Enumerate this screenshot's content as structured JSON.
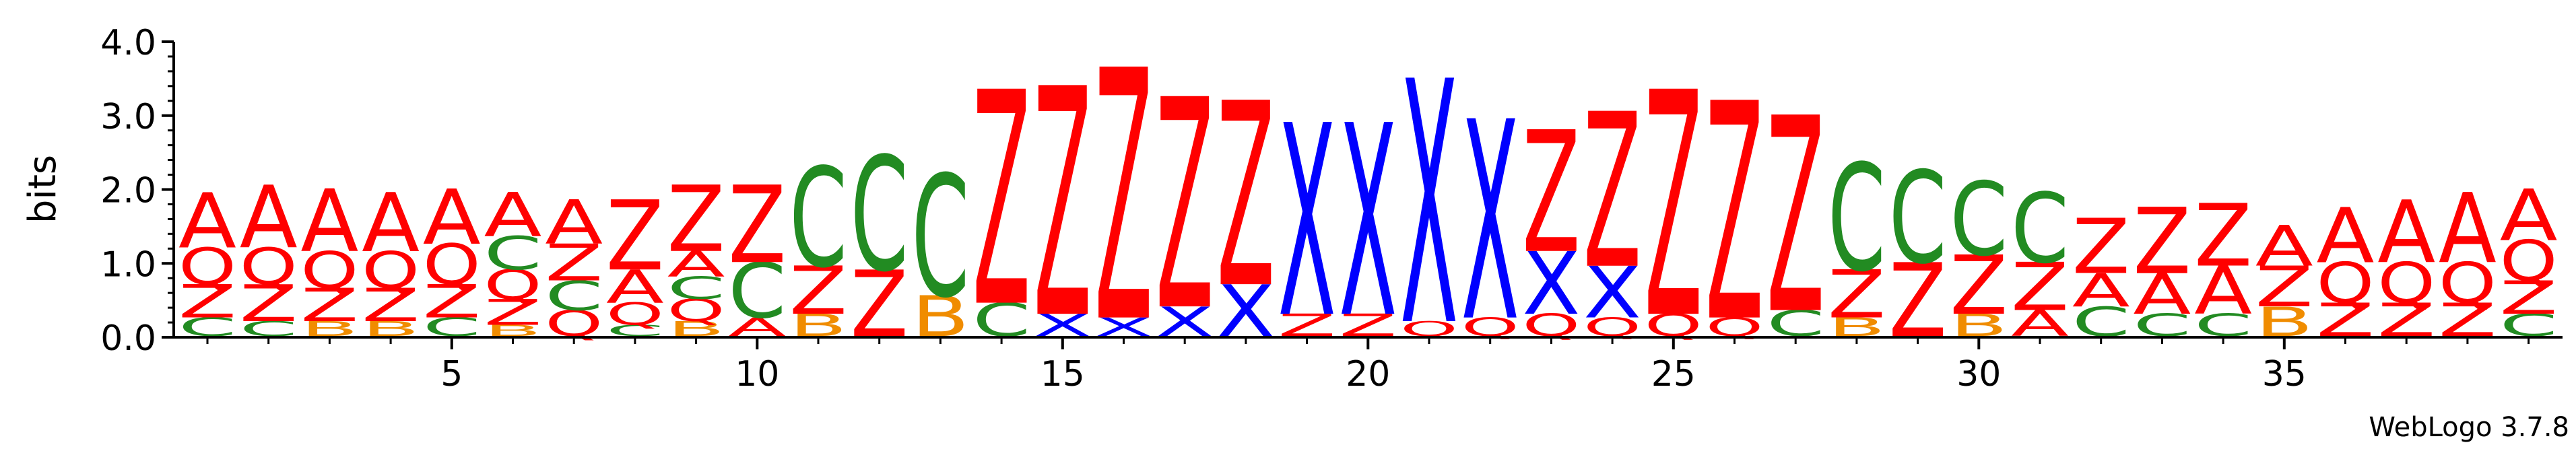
{
  "chart_data": {
    "type": "sequence-logo",
    "ylabel": "bits",
    "ylim": [
      0,
      4.0
    ],
    "y_ticks": [
      "0.0",
      "1.0",
      "2.0",
      "3.0",
      "4.0"
    ],
    "x_ticks": [
      5,
      10,
      15,
      20,
      25,
      30,
      35
    ],
    "positions": 39,
    "footer": "WebLogo 3.7.8",
    "letter_colors": {
      "A": "#ff0000",
      "Q": "#ff0000",
      "Z": "#ff0000",
      "C": "#228b22",
      "B": "#f08c00",
      "X": "#0000ff"
    },
    "columns": [
      [
        [
          "C",
          0.25
        ],
        [
          "Z",
          0.45
        ],
        [
          "Q",
          0.5
        ],
        [
          "A",
          0.75
        ]
      ],
      [
        [
          "C",
          0.2
        ],
        [
          "Z",
          0.5
        ],
        [
          "Q",
          0.5
        ],
        [
          "A",
          0.85
        ]
      ],
      [
        [
          "B",
          0.2
        ],
        [
          "Z",
          0.45
        ],
        [
          "Q",
          0.5
        ],
        [
          "A",
          0.85
        ]
      ],
      [
        [
          "B",
          0.2
        ],
        [
          "Z",
          0.45
        ],
        [
          "Q",
          0.5
        ],
        [
          "A",
          0.8
        ]
      ],
      [
        [
          "C",
          0.25
        ],
        [
          "Z",
          0.45
        ],
        [
          "Q",
          0.55
        ],
        [
          "A",
          0.75
        ]
      ],
      [
        [
          "B",
          0.15
        ],
        [
          "Z",
          0.35
        ],
        [
          "Q",
          0.4
        ],
        [
          "C",
          0.45
        ],
        [
          "A",
          0.6
        ]
      ],
      [
        [
          "Q",
          0.35
        ],
        [
          "C",
          0.4
        ],
        [
          "Z",
          0.5
        ],
        [
          "A",
          0.6
        ]
      ],
      [
        [
          "C",
          0.15
        ],
        [
          "Q",
          0.3
        ],
        [
          "A",
          0.45
        ],
        [
          "Z",
          0.95
        ]
      ],
      [
        [
          "B",
          0.2
        ],
        [
          "Q",
          0.3
        ],
        [
          "C",
          0.3
        ],
        [
          "A",
          0.35
        ],
        [
          "Z",
          0.9
        ]
      ],
      [
        [
          "A",
          0.25
        ],
        [
          "C",
          0.75
        ],
        [
          "Z",
          1.05
        ]
      ],
      [
        [
          "B",
          0.3
        ],
        [
          "Z",
          0.65
        ],
        [
          "C",
          1.35
        ]
      ],
      [
        [
          "Z",
          0.9
        ],
        [
          "C",
          1.55
        ]
      ],
      [
        [
          "B",
          0.55
        ],
        [
          "C",
          1.65
        ]
      ],
      [
        [
          "C",
          0.45
        ],
        [
          "Z",
          2.9
        ]
      ],
      [
        [
          "X",
          0.3
        ],
        [
          "Z",
          3.1
        ]
      ],
      [
        [
          "X",
          0.25
        ],
        [
          "Z",
          3.4
        ]
      ],
      [
        [
          "X",
          0.4
        ],
        [
          "Z",
          2.85
        ]
      ],
      [
        [
          "X",
          0.7
        ],
        [
          "Z",
          2.5
        ]
      ],
      [
        [
          "Z",
          0.3
        ],
        [
          "X",
          2.6
        ]
      ],
      [
        [
          "Z",
          0.3
        ],
        [
          "X",
          2.6
        ]
      ],
      [
        [
          "Q",
          0.2
        ],
        [
          "X",
          3.3
        ]
      ],
      [
        [
          "Q",
          0.25
        ],
        [
          "X",
          2.7
        ]
      ],
      [
        [
          "Q",
          0.3
        ],
        [
          "X",
          0.85
        ],
        [
          "Z",
          1.65
        ]
      ],
      [
        [
          "Q",
          0.25
        ],
        [
          "X",
          0.7
        ],
        [
          "Z",
          2.1
        ]
      ],
      [
        [
          "Q",
          0.3
        ],
        [
          "Z",
          3.05
        ]
      ],
      [
        [
          "Q",
          0.25
        ],
        [
          "Z",
          2.95
        ]
      ],
      [
        [
          "C",
          0.35
        ],
        [
          "Z",
          2.65
        ]
      ],
      [
        [
          "B",
          0.25
        ],
        [
          "Z",
          0.65
        ],
        [
          "C",
          1.45
        ]
      ],
      [
        [
          "Z",
          1.0
        ],
        [
          "C",
          1.25
        ]
      ],
      [
        [
          "B",
          0.3
        ],
        [
          "Z",
          0.8
        ],
        [
          "C",
          1.0
        ]
      ],
      [
        [
          "A",
          0.35
        ],
        [
          "Z",
          0.65
        ],
        [
          "C",
          0.95
        ]
      ],
      [
        [
          "C",
          0.4
        ],
        [
          "A",
          0.45
        ],
        [
          "Z",
          0.75
        ]
      ],
      [
        [
          "C",
          0.3
        ],
        [
          "A",
          0.55
        ],
        [
          "Z",
          0.9
        ]
      ],
      [
        [
          "C",
          0.3
        ],
        [
          "A",
          0.65
        ],
        [
          "Z",
          0.85
        ]
      ],
      [
        [
          "B",
          0.4
        ],
        [
          "Z",
          0.55
        ],
        [
          "A",
          0.55
        ]
      ],
      [
        [
          "Z",
          0.45
        ],
        [
          "Q",
          0.55
        ],
        [
          "A",
          0.75
        ]
      ],
      [
        [
          "Z",
          0.45
        ],
        [
          "Q",
          0.55
        ],
        [
          "A",
          0.85
        ]
      ],
      [
        [
          "Z",
          0.45
        ],
        [
          "Q",
          0.55
        ],
        [
          "A",
          0.95
        ]
      ],
      [
        [
          "C",
          0.3
        ],
        [
          "Z",
          0.45
        ],
        [
          "Q",
          0.55
        ],
        [
          "A",
          0.7
        ]
      ]
    ]
  }
}
